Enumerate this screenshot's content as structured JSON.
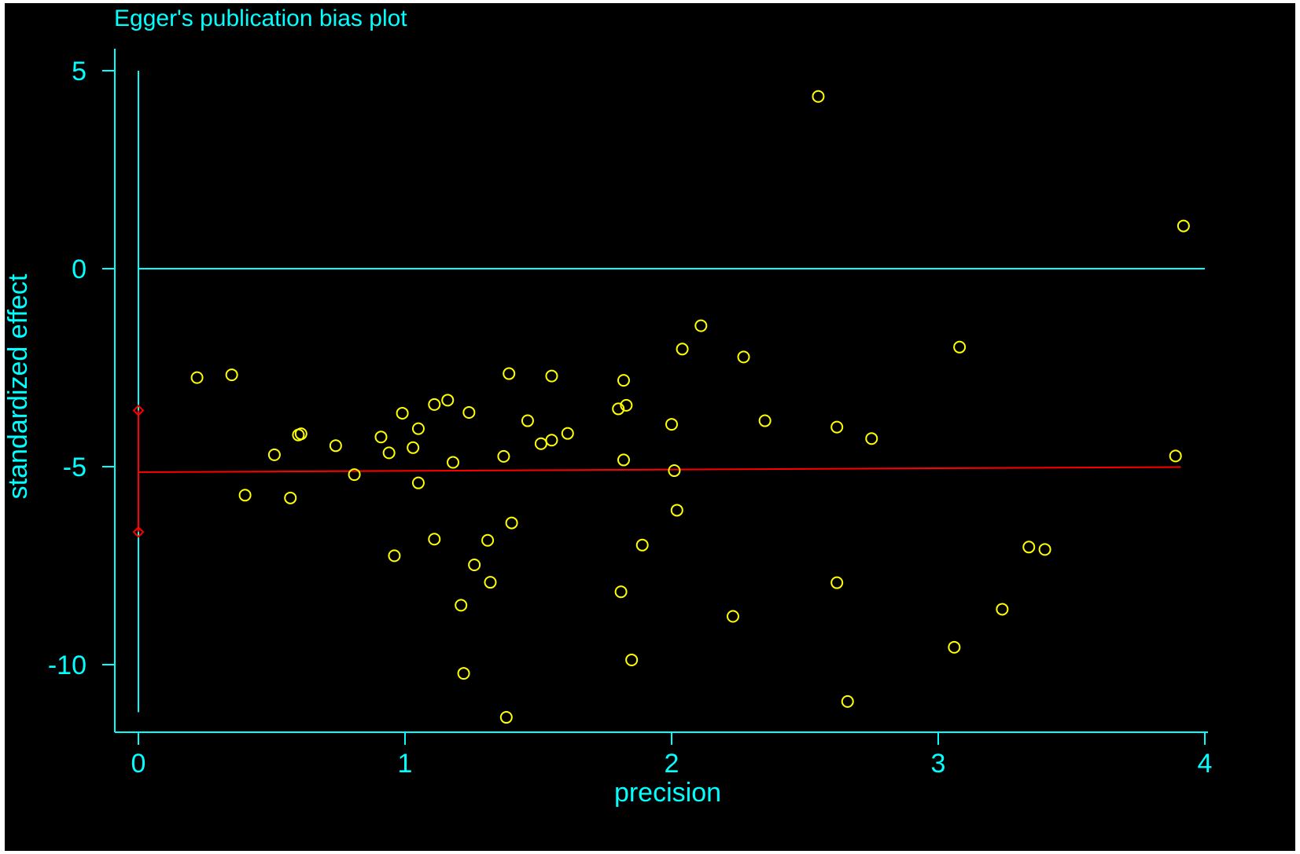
{
  "colors": {
    "background": "#000000",
    "axis": "#00FFFF",
    "points": "#FFFF00",
    "regression": "#FF0000",
    "ci_markers": "#FF0000"
  },
  "chart_data": {
    "type": "scatter",
    "title": "Egger's publication bias plot",
    "xlabel": "precision",
    "ylabel": "standardized effect",
    "xlim": [
      0,
      4
    ],
    "ylim": [
      -11.7,
      5.5
    ],
    "xticks": [
      0,
      1,
      2,
      3,
      4
    ],
    "yticks": [
      5,
      0,
      -5,
      -10
    ],
    "xtick_labels": [
      "0",
      "1",
      "2",
      "3",
      "4"
    ],
    "ytick_labels": [
      "5",
      "0",
      "-5",
      "-10"
    ],
    "grid": false,
    "reference_line_y": 0,
    "regression_line": {
      "x": [
        0,
        3.91
      ],
      "y": [
        -5.14,
        -5.01
      ]
    },
    "intercept_ci": [
      -3.58,
      -6.65
    ],
    "points": {
      "x": [
        0.22,
        0.35,
        0.4,
        0.51,
        0.57,
        0.6,
        0.61,
        0.74,
        0.81,
        0.91,
        0.94,
        0.96,
        0.99,
        1.03,
        1.05,
        1.05,
        1.11,
        1.11,
        1.16,
        1.18,
        1.21,
        1.22,
        1.24,
        1.26,
        1.31,
        1.32,
        1.37,
        1.38,
        1.39,
        1.4,
        1.46,
        1.51,
        1.55,
        1.55,
        1.61,
        1.8,
        1.81,
        1.82,
        1.82,
        1.83,
        1.85,
        1.89,
        2.0,
        2.01,
        2.02,
        2.04,
        2.11,
        2.23,
        2.27,
        2.35,
        2.55,
        2.62,
        2.62,
        2.66,
        2.75,
        3.06,
        3.08,
        3.24,
        3.34,
        3.4,
        3.89,
        3.92
      ],
      "y": [
        -2.75,
        -2.68,
        -5.72,
        -4.7,
        -5.79,
        -4.2,
        -4.17,
        -4.47,
        -5.2,
        -4.25,
        -4.65,
        -7.25,
        -3.65,
        -4.52,
        -4.04,
        -5.41,
        -3.43,
        -6.83,
        -3.32,
        -4.89,
        -8.5,
        -10.22,
        -3.63,
        -7.48,
        -6.86,
        -7.92,
        -4.74,
        -11.33,
        -2.65,
        -6.42,
        -3.84,
        -4.42,
        -4.33,
        -2.71,
        -4.16,
        -3.54,
        -8.16,
        -2.82,
        -4.83,
        -3.45,
        -9.88,
        -6.98,
        -3.93,
        -5.1,
        -6.1,
        -2.03,
        -1.44,
        -8.78,
        -2.23,
        -3.84,
        4.35,
        -4.0,
        -7.93,
        -10.93,
        -4.29,
        -9.56,
        -1.98,
        -8.6,
        -7.03,
        -7.09,
        -4.73,
        1.08
      ]
    }
  }
}
